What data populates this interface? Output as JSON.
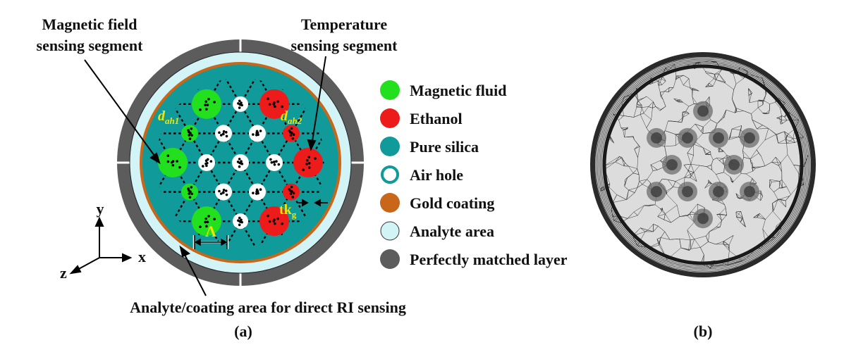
{
  "callouts": {
    "magnetic_line1": "Magnetic field",
    "magnetic_line2": "sensing segment",
    "temperature_line1": "Temperature",
    "temperature_line2": "sensing segment",
    "analyte_coating": "Analyte/coating area for direct RI sensing"
  },
  "symbols": {
    "dah1_base": "d",
    "dah1_sub": "ah1",
    "dah2_base": "d",
    "dah2_sub": "ah2",
    "tk_base": "tk",
    "tk_sub": "g",
    "pitch": "Λ"
  },
  "axes": {
    "x": "x",
    "y": "y",
    "z": "z"
  },
  "legend": [
    {
      "label": "Magnetic fluid",
      "color": "#22e01e",
      "style": "fill"
    },
    {
      "label": "Ethanol",
      "color": "#ee1b1b",
      "style": "fill"
    },
    {
      "label": "Pure silica",
      "color": "#109a9a",
      "style": "fill"
    },
    {
      "label": "Air hole",
      "color": "#109a9a",
      "style": "ring"
    },
    {
      "label": "Gold coating",
      "color": "#c8661a",
      "style": "fill"
    },
    {
      "label": "Analyte area",
      "color": "#d2f4f7",
      "style": "outline"
    },
    {
      "label": "Perfectly matched layer",
      "color": "#5c5c5c",
      "style": "fill"
    }
  ],
  "captions": {
    "a": "(a)",
    "b": "(b)"
  },
  "colors": {
    "pml": "#5c5c5c",
    "analyte": "#d2f4f7",
    "gold": "#c8661a",
    "silica": "#109a9a",
    "magnetic": "#22e01e",
    "ethanol": "#ee1b1b",
    "air": "#ffffff",
    "annotation": "#f0e40a"
  }
}
